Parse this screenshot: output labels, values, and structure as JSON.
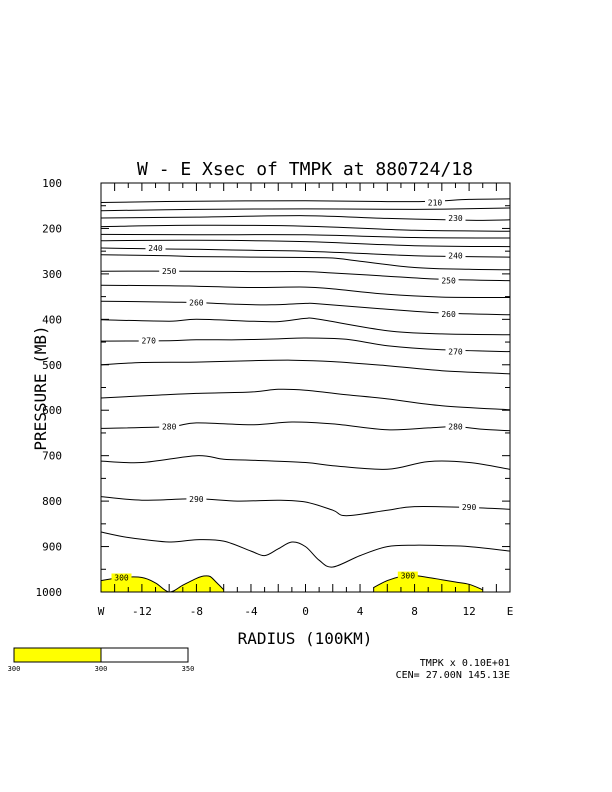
{
  "chart_data": {
    "type": "contour",
    "title": "W - E Xsec of TMPK at 880724/18",
    "xlabel": "RADIUS (100KM)",
    "ylabel": "PRESSURE (MB)",
    "x_ticks": [
      "W",
      "-12",
      "-8",
      "-4",
      "0",
      "4",
      "8",
      "12",
      "E"
    ],
    "y_ticks": [
      "100",
      "200",
      "300",
      "400",
      "500",
      "600",
      "700",
      "800",
      "900",
      "1000"
    ],
    "xlim": [
      -15,
      15
    ],
    "ylim": [
      1000,
      100
    ],
    "contour_labels": [
      "210",
      "230",
      "240",
      "240",
      "250",
      "250",
      "260",
      "260",
      "270",
      "270",
      "280",
      "280",
      "290",
      "290",
      "300",
      "300"
    ],
    "contours": [
      {
        "level": 210,
        "label": "210",
        "x": [
          -15,
          -8,
          0,
          6,
          9.5,
          12,
          15
        ],
        "p": [
          143,
          140,
          139,
          141,
          140,
          136,
          135
        ]
      },
      {
        "level": 220,
        "x": [
          -15,
          -8,
          0,
          8,
          15
        ],
        "p": [
          161,
          158,
          157,
          158,
          155
        ]
      },
      {
        "level": 230,
        "x": [
          -15,
          -8,
          0,
          6,
          12,
          15
        ],
        "p": [
          177,
          175,
          172,
          178,
          182,
          181
        ]
      },
      {
        "level": 240,
        "x": [
          -15,
          -8,
          0,
          8,
          15
        ],
        "p": [
          196,
          193,
          195,
          204,
          206
        ]
      },
      {
        "level": 240,
        "x": [
          -15,
          -8,
          0,
          8,
          15
        ],
        "p": [
          213,
          214,
          214,
          220,
          221
        ]
      },
      {
        "level": 250,
        "x": [
          -15,
          -8,
          0,
          8,
          15
        ],
        "p": [
          227,
          226,
          229,
          238,
          240
        ]
      },
      {
        "level": 240,
        "label": "240",
        "x": [
          -15,
          -11,
          -8,
          -4,
          0,
          4,
          8,
          12,
          15
        ],
        "p": [
          243,
          245,
          246,
          248,
          250,
          255,
          260,
          262,
          263
        ]
      },
      {
        "level": 240,
        "label": "240",
        "x": [
          -15,
          -10,
          -8,
          -4,
          0,
          2,
          4,
          8,
          12,
          15
        ],
        "p": [
          258,
          260,
          262,
          263,
          264,
          265,
          272,
          286,
          290,
          291
        ]
      },
      {
        "level": 250,
        "label": "250",
        "x": [
          -15,
          -8,
          -4,
          0,
          2,
          6,
          10,
          15
        ],
        "p": [
          294,
          294,
          295,
          295,
          298,
          305,
          312,
          315
        ]
      },
      {
        "level": 250,
        "label": "250",
        "x": [
          -15,
          -10,
          -8,
          -4,
          0,
          2,
          6,
          10,
          15
        ],
        "p": [
          325,
          326,
          327,
          330,
          329,
          333,
          345,
          351,
          352
        ]
      },
      {
        "level": 260,
        "label": "260",
        "x": [
          -15,
          -10,
          -8,
          -5,
          -2.5,
          0,
          1,
          6,
          10,
          15
        ],
        "p": [
          360,
          362,
          363,
          367,
          368,
          365,
          366,
          378,
          386,
          390
        ]
      },
      {
        "level": 260,
        "label": "260",
        "x": [
          -15,
          -10,
          -8,
          -4,
          -2,
          0,
          1,
          6,
          10,
          15
        ],
        "p": [
          401,
          404,
          400,
          404,
          405,
          398,
          400,
          425,
          432,
          434
        ]
      },
      {
        "level": 270,
        "label": "270",
        "x": [
          -15,
          -10,
          -8,
          -5,
          -2,
          0,
          3,
          6,
          10,
          15
        ],
        "p": [
          448,
          447,
          445,
          445,
          443,
          441,
          444,
          458,
          467,
          471
        ]
      },
      {
        "level": 270,
        "label": "270",
        "x": [
          -15,
          -12,
          -8,
          -4,
          -1,
          2,
          6,
          10,
          15
        ],
        "p": [
          500,
          495,
          494,
          491,
          490,
          493,
          502,
          513,
          520
        ]
      },
      {
        "level": 270,
        "x": [
          -15,
          -11,
          -8,
          -4,
          -2,
          0,
          3,
          6,
          10,
          15
        ],
        "p": [
          573,
          567,
          563,
          560,
          554,
          556,
          566,
          575,
          590,
          599
        ]
      },
      {
        "level": 280,
        "label": "280",
        "x": [
          -15,
          -10,
          -8,
          -4,
          -1,
          2,
          6,
          9,
          11,
          13,
          15
        ],
        "p": [
          640,
          636,
          628,
          632,
          626,
          630,
          643,
          639,
          636,
          642,
          645
        ]
      },
      {
        "level": 280,
        "x": [
          -15,
          -12,
          -8,
          -6,
          -4,
          0,
          2,
          6,
          9,
          12,
          15
        ],
        "p": [
          712,
          715,
          700,
          708,
          710,
          715,
          722,
          730,
          713,
          715,
          730
        ]
      },
      {
        "level": 290,
        "label": "290",
        "x": [
          -15,
          -12,
          -8,
          -5,
          -2,
          0,
          2,
          3,
          6,
          8,
          12,
          15
        ],
        "p": [
          790,
          798,
          795,
          800,
          798,
          802,
          820,
          832,
          820,
          812,
          814,
          818
        ]
      },
      {
        "level": 290,
        "x": [
          -15,
          -13,
          -10,
          -8,
          -6,
          -4,
          -3,
          -2,
          -1,
          0,
          1,
          2,
          4,
          6,
          8,
          10,
          12,
          15
        ],
        "p": [
          868,
          880,
          890,
          885,
          888,
          910,
          920,
          905,
          890,
          900,
          930,
          945,
          920,
          900,
          897,
          898,
          900,
          910
        ]
      },
      {
        "level": 300,
        "label": "300",
        "x": [
          -15,
          -13.5,
          -12,
          -11,
          -10,
          -9,
          -8,
          -7.5,
          -7,
          -6.5,
          -6
        ],
        "p": [
          975,
          968,
          968,
          980,
          1000,
          985,
          970,
          965,
          966,
          980,
          995
        ]
      },
      {
        "level": 300,
        "label": "300",
        "x": [
          5,
          6,
          7,
          8,
          9,
          10,
          11,
          12,
          13
        ],
        "p": [
          990,
          975,
          966,
          964,
          968,
          973,
          978,
          983,
          995
        ]
      }
    ],
    "shading": {
      "threshold": 300,
      "color": "#ffff00"
    },
    "colorbar": {
      "labels": [
        "300",
        "300",
        "350"
      ],
      "colors": [
        "#ffff00",
        "#ffffff"
      ]
    },
    "footer": {
      "line1": "TMPK x  0.10E+01",
      "line2": "CEN= 27.00N  145.13E"
    }
  }
}
